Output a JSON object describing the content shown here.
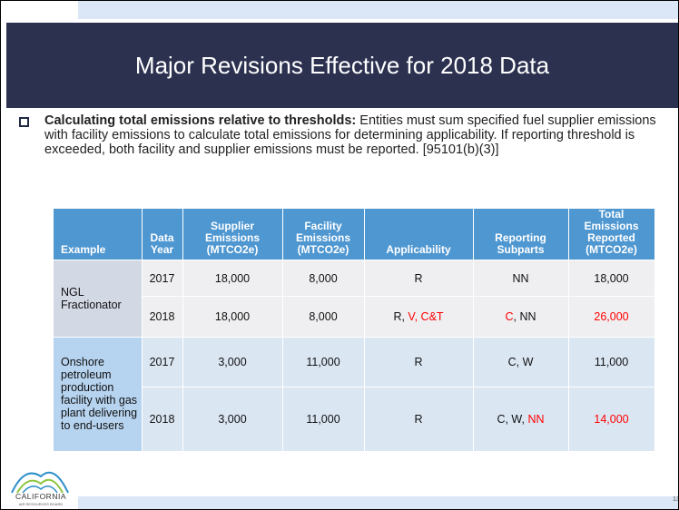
{
  "title": "Major Revisions Effective for 2018 Data",
  "bullet": {
    "lead": "Calculating total emissions relative to thresholds:",
    "text": " Entities must sum specified fuel supplier emissions with facility emissions to calculate total emissions for determining applicability. If reporting threshold is exceeded, both facility and supplier emissions must be reported. [95101(b)(3)]"
  },
  "table": {
    "headers": [
      "Example",
      "Data Year",
      "Supplier Emissions (MTCO2e)",
      "Facility Emissions (MTCO2e)",
      "Applicability",
      "Reporting Subparts",
      "Total Emissions Reported (MTCO2e)"
    ],
    "groups": [
      {
        "example": "NGL Fractionator",
        "rows": [
          [
            [
              "2017"
            ],
            [
              "18,000"
            ],
            [
              "8,000"
            ],
            [
              "R"
            ],
            [
              "NN"
            ],
            [
              "18,000"
            ]
          ],
          [
            [
              "2018"
            ],
            [
              "18,000"
            ],
            [
              "8,000"
            ],
            [
              "R, ",
              {
                "text": "V, C&T",
                "color": "#ff0000"
              }
            ],
            [
              {
                "text": "C",
                "color": "#ff0000"
              },
              ", NN"
            ],
            [
              {
                "text": "26,000",
                "color": "#ff0000"
              }
            ]
          ]
        ]
      },
      {
        "example": "Onshore petroleum production facility with gas plant delivering to end-users",
        "rows": [
          [
            [
              "2017"
            ],
            [
              "3,000"
            ],
            [
              "11,000"
            ],
            [
              "R"
            ],
            [
              "C, W"
            ],
            [
              "11,000"
            ]
          ],
          [
            [
              "2018"
            ],
            [
              "3,000"
            ],
            [
              "11,000"
            ],
            [
              "R"
            ],
            [
              "C, W, ",
              {
                "text": "NN",
                "color": "#ff0000"
              }
            ],
            [
              {
                "text": "14,000",
                "color": "#ff0000"
              }
            ]
          ]
        ]
      }
    ]
  },
  "logo": {
    "name": "CALIFORNIA",
    "sub": "AIR RESOURCES BOARD"
  },
  "page_number": "13"
}
